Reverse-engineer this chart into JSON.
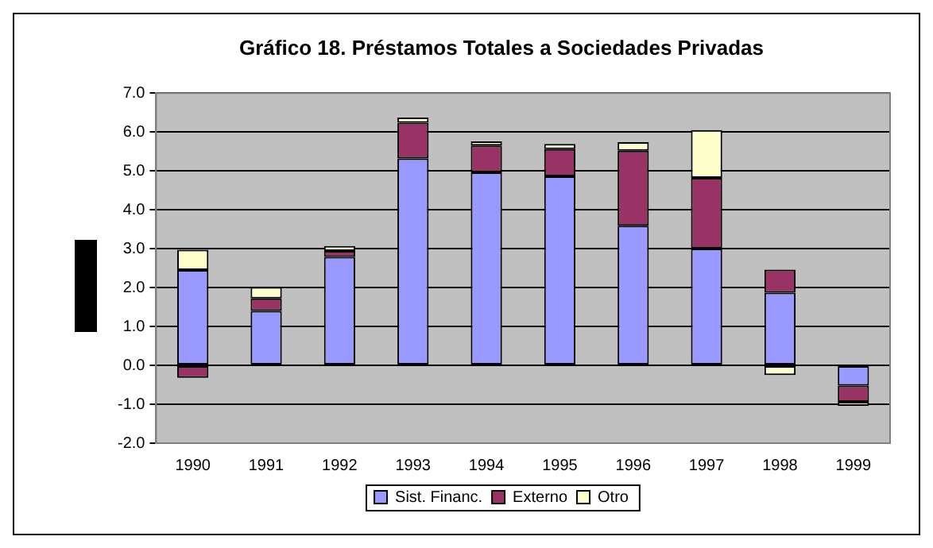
{
  "chart_data": {
    "type": "bar",
    "title": "Gráfico 18. Préstamos Totales a Sociedades Privadas",
    "categories": [
      "1990",
      "1991",
      "1992",
      "1993",
      "1994",
      "1995",
      "1996",
      "1997",
      "1998",
      "1999"
    ],
    "series": [
      {
        "name": "Sist. Financ.",
        "color": "#9999ff",
        "values": [
          2.45,
          1.4,
          2.79,
          5.32,
          4.96,
          4.86,
          3.59,
          3.0,
          1.87,
          -0.52
        ]
      },
      {
        "name": "Externo",
        "color": "#993366",
        "values": [
          -0.32,
          0.32,
          0.15,
          0.92,
          0.69,
          0.7,
          1.93,
          1.82,
          0.59,
          -0.42
        ]
      },
      {
        "name": "Otro",
        "color": "#ffffcc",
        "values": [
          0.52,
          0.29,
          0.13,
          0.13,
          0.11,
          0.13,
          0.22,
          1.23,
          -0.25,
          -0.1
        ]
      }
    ],
    "stacked": true,
    "ylim": [
      -2,
      7
    ],
    "yticks": [
      {
        "value": -2,
        "label": "-2.0"
      },
      {
        "value": -1,
        "label": "-1.0"
      },
      {
        "value": 0,
        "label": "0.0"
      },
      {
        "value": 1,
        "label": "1.0"
      },
      {
        "value": 2,
        "label": "2.0"
      },
      {
        "value": 3,
        "label": "3.0"
      },
      {
        "value": 4,
        "label": "4.0"
      },
      {
        "value": 5,
        "label": "5.0"
      },
      {
        "value": 6,
        "label": "6.0"
      },
      {
        "value": 7,
        "label": "7.0"
      }
    ],
    "grid": "y",
    "legend": "bottom"
  }
}
